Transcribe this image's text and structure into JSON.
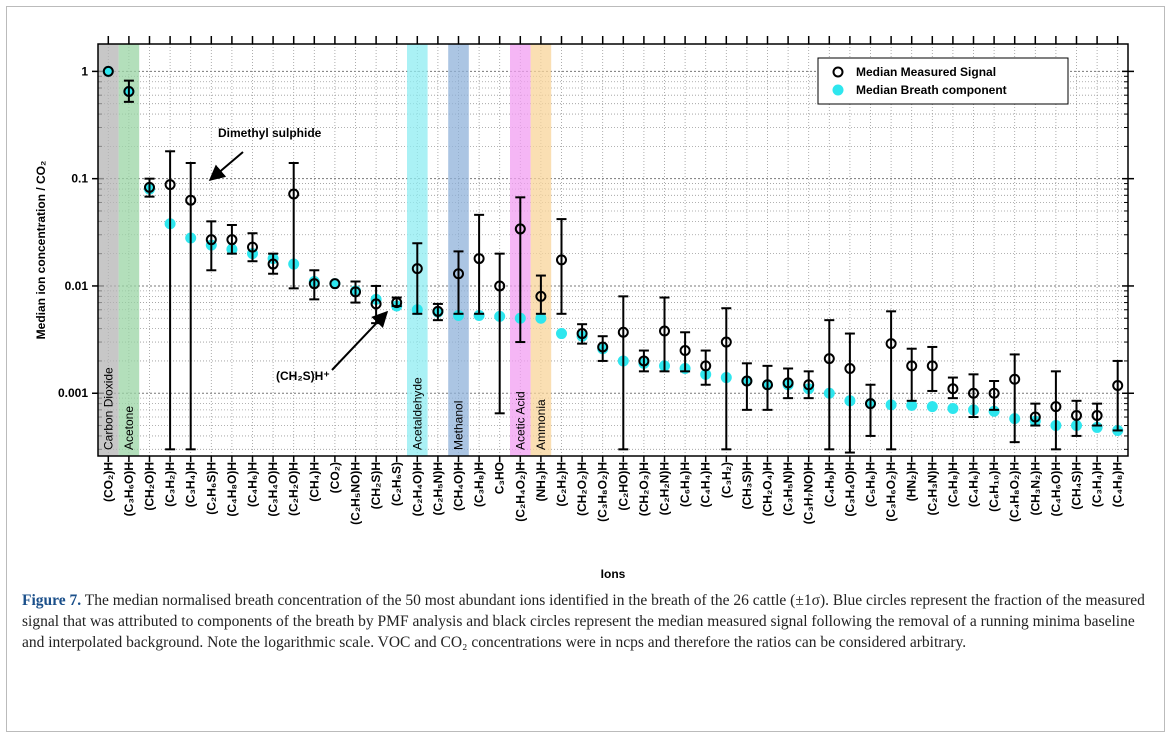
{
  "chart_data": {
    "type": "scatter",
    "ylabel": "Median ion concentration / CO₂",
    "xlabel": "Ions",
    "log_y": true,
    "grid": true,
    "minor_grid": true,
    "legend": "top-right",
    "ylim": [
      0.00026,
      1.8
    ],
    "yticks": [
      0.001,
      0.01,
      0.1,
      1
    ],
    "categories": [
      "(CO₂)H",
      "(C₃H₆O)H",
      "(CH₂O)H",
      "(C₃H₂)H",
      "(C₃H₄)H",
      "(C₂H₆S)H",
      "(C₄H₈O)H",
      "(C₄H₆)H",
      "(C₃H₄O)H",
      "(C₂H₂O)H",
      "(CH₄)H",
      "(CO₂)",
      "(C₂H₅NO)H",
      "(CH₂S)H",
      "(C₂H₆S)",
      "(C₂H₄O)H",
      "(C₂H₅N)H",
      "(CH₄O)H",
      "(C₃H₈)H",
      "C₃HO",
      "(C₂H₄O₂)H",
      "(NH₃)H",
      "(C₂H₂)H",
      "(CH₂O₂)H",
      "(C₃H₈O₂)H",
      "(C₂HO)H",
      "(CH₂O₃)H",
      "(C₂H₂N)H",
      "(C₆H₈)H",
      "(C₄H₄)H",
      "(C₃H₂)",
      "(CH₃S)H",
      "(CH₂O₄)H",
      "(C₃H₅N)H",
      "(C₃H₇NO)H",
      "(C₄H₉)H",
      "(C₃H₄O)H",
      "(C₅H₆)H",
      "(C₃H₆O₂)H",
      "(HN₂)H",
      "(C₂H₃N)H",
      "(C₅H₈)H",
      "(C₄H₆)H",
      "(C₆H₁₀)H",
      "(C₄H₈O₂)H",
      "(CH₃N₂)H",
      "(C₄H₆O)H",
      "(CH₄S)H",
      "(C₃H₄)H",
      "(C₄H₈)H"
    ],
    "series": [
      {
        "name": "Median Measured Signal",
        "color": "#000000",
        "values": [
          1.0,
          0.65,
          0.083,
          0.088,
          0.063,
          0.027,
          0.027,
          0.023,
          0.016,
          0.072,
          0.0105,
          0.0105,
          0.0088,
          0.0068,
          0.007,
          0.0145,
          0.0058,
          0.013,
          0.018,
          0.01,
          0.034,
          0.008,
          0.0175,
          0.0036,
          0.0027,
          0.0037,
          0.002,
          0.0038,
          0.0025,
          0.0018,
          0.003,
          0.0013,
          0.0012,
          0.00125,
          0.0012,
          0.0021,
          0.0017,
          0.0008,
          0.0029,
          0.0018,
          0.0018,
          0.0011,
          0.001,
          0.001,
          0.00135,
          0.0006,
          0.00075,
          0.00062,
          0.00062,
          0.00118
        ],
        "lower": [
          null,
          0.52,
          0.068,
          0.0003,
          0.0003,
          0.014,
          0.02,
          0.017,
          0.013,
          0.0095,
          0.0075,
          null,
          0.007,
          0.0045,
          0.0065,
          0.0055,
          0.0048,
          0.0055,
          0.0055,
          0.00065,
          0.003,
          0.0055,
          0.0055,
          0.0029,
          0.002,
          0.0003,
          0.0016,
          0.0016,
          0.0016,
          0.0012,
          0.0003,
          0.0007,
          0.0007,
          0.0009,
          0.0009,
          0.0003,
          0.00028,
          0.0004,
          0.0003,
          0.00085,
          0.00105,
          0.0009,
          0.0006,
          0.0007,
          0.00035,
          0.0005,
          0.0003,
          0.0004,
          0.0005,
          0.00045
        ],
        "upper": [
          null,
          0.82,
          0.1,
          0.18,
          0.14,
          0.04,
          0.037,
          0.031,
          0.02,
          0.14,
          0.014,
          null,
          0.011,
          0.01,
          0.0078,
          0.025,
          0.0068,
          0.021,
          0.046,
          0.02,
          0.067,
          0.0125,
          0.042,
          0.0044,
          0.0034,
          0.008,
          0.0025,
          0.0078,
          0.0037,
          0.0025,
          0.0062,
          0.0019,
          0.0018,
          0.0017,
          0.0016,
          0.0048,
          0.0036,
          0.0012,
          0.0058,
          0.0026,
          0.0027,
          0.0014,
          0.0015,
          0.0013,
          0.0023,
          0.0008,
          0.0016,
          0.00085,
          0.0008,
          0.002
        ]
      },
      {
        "name": "Median Breath component",
        "color": "#2ee6ee",
        "values": [
          1.0,
          0.65,
          0.08,
          0.038,
          0.028,
          0.024,
          0.022,
          0.02,
          0.018,
          0.016,
          0.011,
          0.0105,
          0.009,
          0.0075,
          0.0065,
          0.006,
          0.0057,
          0.0053,
          0.0053,
          0.0052,
          0.005,
          0.005,
          0.0036,
          0.0034,
          0.0026,
          0.002,
          0.0019,
          0.0018,
          0.0017,
          0.0015,
          0.0014,
          0.0013,
          0.0012,
          0.0012,
          0.0011,
          0.001,
          0.00085,
          0.0008,
          0.00078,
          0.00077,
          0.00075,
          0.00072,
          0.0007,
          0.00068,
          0.00058,
          0.00055,
          0.0005,
          0.0005,
          0.00048,
          0.00045
        ]
      }
    ],
    "highlights": [
      {
        "index": 0,
        "label": "Carbon Dioxide",
        "color": "#b4b4b4"
      },
      {
        "index": 1,
        "label": "Acetone",
        "color": "#9ad4a4"
      },
      {
        "index": 15,
        "label": "Acetaldehyde",
        "color": "#8eecf2"
      },
      {
        "index": 17,
        "label": "Methanol",
        "color": "#8fb1da"
      },
      {
        "index": 20,
        "label": "Acetic Acid",
        "color": "#f29ef2"
      },
      {
        "index": 21,
        "label": "Ammonia",
        "color": "#f8d49a"
      }
    ],
    "annotations": [
      "Dimethyl sulphide",
      "(CH₂S)H⁺"
    ],
    "caption": {
      "label": "Figure 7.",
      "text": " The median normalised breath concentration of the 50 most abundant ions identified in the breath of the 26 cattle (±1σ). Blue circles represent the fraction of the measured signal that was attributed to components of the breath by PMF analysis and black circles represent the median measured signal following the removal of a running minima baseline and interpolated background. Note the logarithmic scale. VOC and CO₂ concentrations were in ncps and therefore the ratios can be considered arbitrary."
    }
  }
}
